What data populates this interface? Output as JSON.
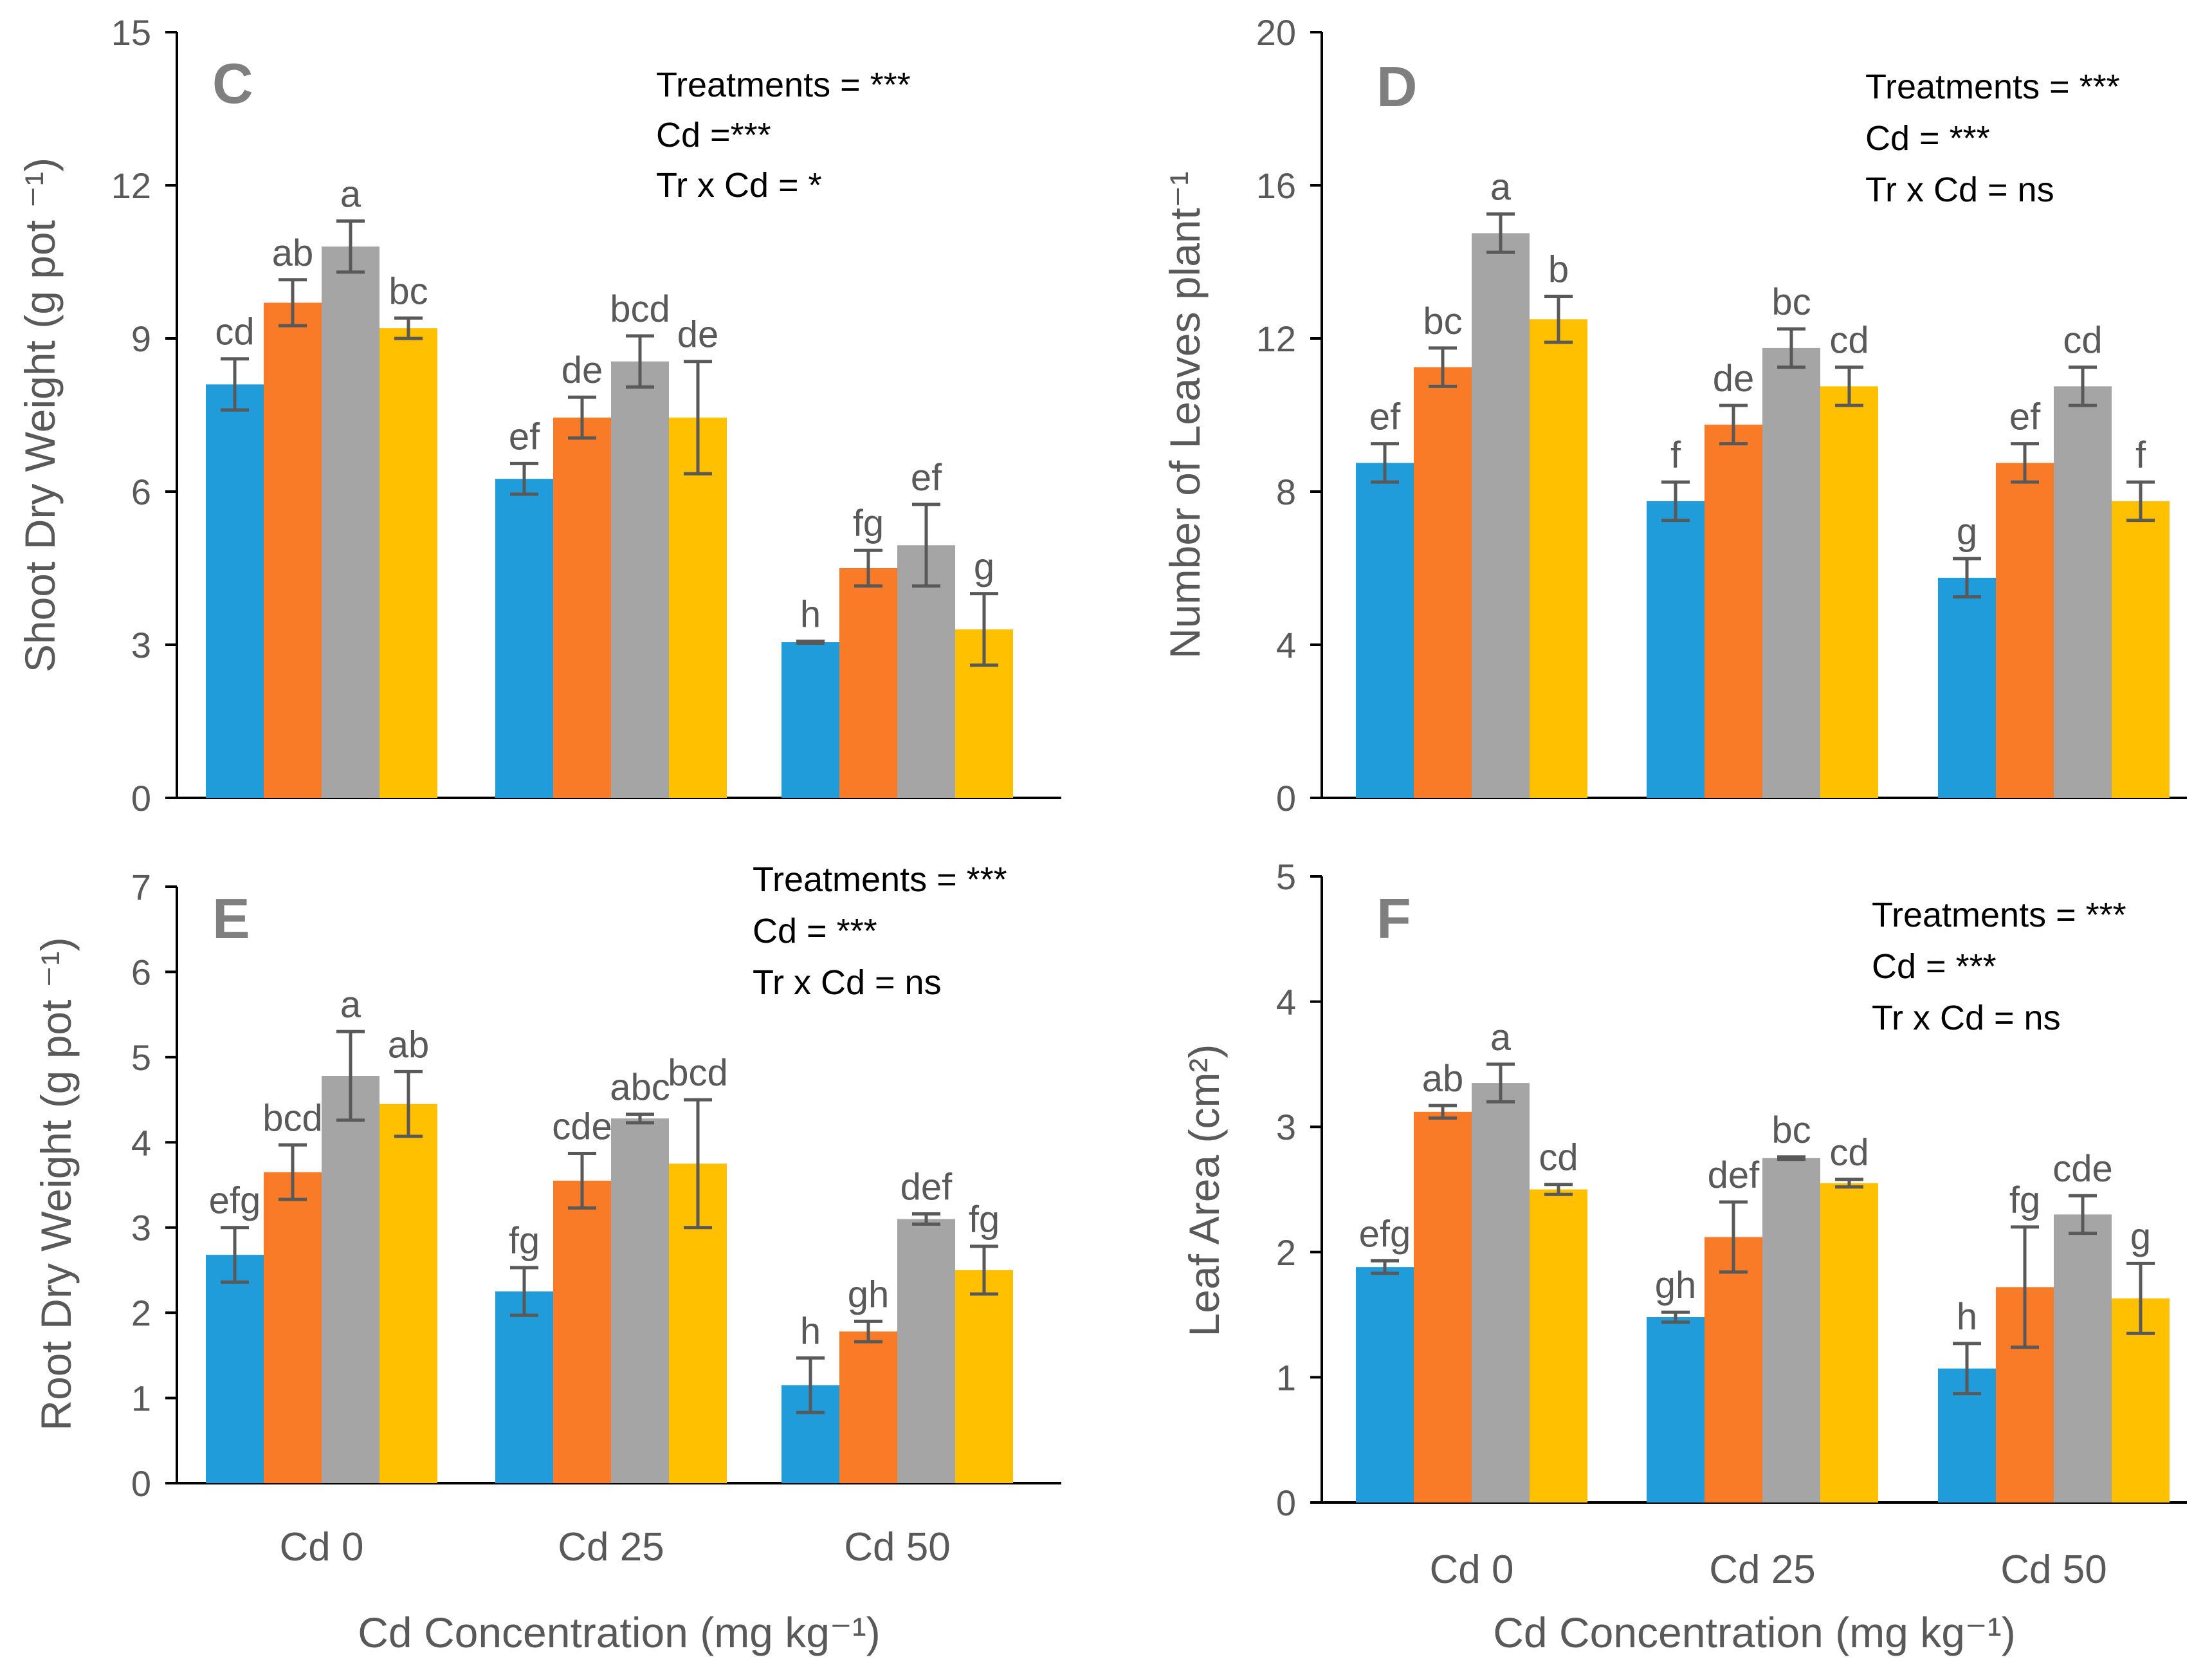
{
  "legend_colors": [
    "#1f9cd9",
    "#f97b28",
    "#a5a5a5",
    "#ffc000"
  ],
  "chart_data": [
    {
      "panel": "C",
      "type": "bar",
      "ylabel": "Shoot Dry Weight (g pot ⁻¹)",
      "xlabel": "",
      "ylim": [
        0,
        15
      ],
      "yticks": [
        "0",
        "3",
        "6",
        "9",
        "12",
        "15"
      ],
      "categories": [
        "",
        "",
        ""
      ],
      "annotations": [
        "Treatments = ***",
        "Cd =***",
        "Tr x Cd = *"
      ],
      "series": [
        {
          "values": [
            8.1,
            6.25,
            3.05
          ],
          "errors": [
            0.5,
            0.3,
            0.02
          ],
          "letters": [
            "cd",
            "ef",
            "h"
          ]
        },
        {
          "values": [
            9.7,
            7.45,
            4.5
          ],
          "errors": [
            0.45,
            0.4,
            0.35
          ],
          "letters": [
            "ab",
            "de",
            "fg"
          ]
        },
        {
          "values": [
            10.8,
            8.55,
            4.95
          ],
          "errors": [
            0.5,
            0.5,
            0.8
          ],
          "letters": [
            "a",
            "bcd",
            "ef"
          ]
        },
        {
          "values": [
            9.2,
            7.45,
            3.3
          ],
          "errors": [
            0.2,
            1.1,
            0.7
          ],
          "letters": [
            "bc",
            "de",
            "g"
          ]
        }
      ]
    },
    {
      "panel": "D",
      "type": "bar",
      "ylabel": "Number of Leaves plant⁻¹",
      "xlabel": "",
      "ylim": [
        0,
        20
      ],
      "yticks": [
        "0",
        "4",
        "8",
        "12",
        "16",
        "20"
      ],
      "categories": [
        "",
        "",
        ""
      ],
      "annotations": [
        "Treatments = ***",
        "Cd = ***",
        "Tr x Cd = ns"
      ],
      "series": [
        {
          "values": [
            8.75,
            7.75,
            5.75
          ],
          "errors": [
            0.5,
            0.5,
            0.5
          ],
          "letters": [
            "ef",
            "f",
            "g"
          ]
        },
        {
          "values": [
            11.25,
            9.75,
            8.75
          ],
          "errors": [
            0.5,
            0.5,
            0.5
          ],
          "letters": [
            "bc",
            "de",
            "ef"
          ]
        },
        {
          "values": [
            14.75,
            11.75,
            10.75
          ],
          "errors": [
            0.5,
            0.5,
            0.5
          ],
          "letters": [
            "a",
            "bc",
            "cd"
          ]
        },
        {
          "values": [
            12.5,
            10.75,
            7.75
          ],
          "errors": [
            0.6,
            0.5,
            0.5
          ],
          "letters": [
            "b",
            "cd",
            "f"
          ]
        }
      ]
    },
    {
      "panel": "E",
      "type": "bar",
      "ylabel": "Root Dry Weight (g pot ⁻¹)",
      "xlabel": "Cd Concentration (mg kg⁻¹)",
      "ylim": [
        0,
        7
      ],
      "yticks": [
        "0",
        "1",
        "2",
        "3",
        "4",
        "5",
        "6",
        "7"
      ],
      "categories": [
        "Cd 0",
        "Cd 25",
        "Cd 50"
      ],
      "annotations": [
        "Treatments = ***",
        "Cd = ***",
        "Tr x Cd = ns"
      ],
      "series": [
        {
          "values": [
            2.68,
            2.25,
            1.15
          ],
          "errors": [
            0.32,
            0.28,
            0.32
          ],
          "letters": [
            "efg",
            "fg",
            "h"
          ]
        },
        {
          "values": [
            3.65,
            3.55,
            1.78
          ],
          "errors": [
            0.32,
            0.32,
            0.12
          ],
          "letters": [
            "bcd",
            "cde",
            "gh"
          ]
        },
        {
          "values": [
            4.78,
            4.28,
            3.1
          ],
          "errors": [
            0.52,
            0.05,
            0.06
          ],
          "letters": [
            "a",
            "abc",
            "def"
          ]
        },
        {
          "values": [
            4.45,
            3.75,
            2.5
          ],
          "errors": [
            0.38,
            0.75,
            0.28
          ],
          "letters": [
            "ab",
            "bcd",
            "fg"
          ]
        }
      ]
    },
    {
      "panel": "F",
      "type": "bar",
      "ylabel": "Leaf Area (cm²)",
      "xlabel": "Cd Concentration (mg kg⁻¹)",
      "ylim": [
        0,
        5
      ],
      "yticks": [
        "0",
        "1",
        "2",
        "3",
        "4",
        "5"
      ],
      "categories": [
        "Cd 0",
        "Cd 25",
        "Cd 50"
      ],
      "annotations": [
        "Treatments = ***",
        "Cd = ***",
        "Tr x Cd = ns"
      ],
      "series": [
        {
          "values": [
            1.88,
            1.48,
            1.07
          ],
          "errors": [
            0.05,
            0.04,
            0.2
          ],
          "letters": [
            "efg",
            "gh",
            "h"
          ]
        },
        {
          "values": [
            3.12,
            2.12,
            1.72
          ],
          "errors": [
            0.05,
            0.28,
            0.48
          ],
          "letters": [
            "ab",
            "def",
            "fg"
          ]
        },
        {
          "values": [
            3.35,
            2.75,
            2.3
          ],
          "errors": [
            0.15,
            0.01,
            0.15
          ],
          "letters": [
            "a",
            "bc",
            "cde"
          ]
        },
        {
          "values": [
            2.5,
            2.55,
            1.63
          ],
          "errors": [
            0.04,
            0.03,
            0.28
          ],
          "letters": [
            "cd",
            "cd",
            "g"
          ]
        }
      ]
    }
  ]
}
